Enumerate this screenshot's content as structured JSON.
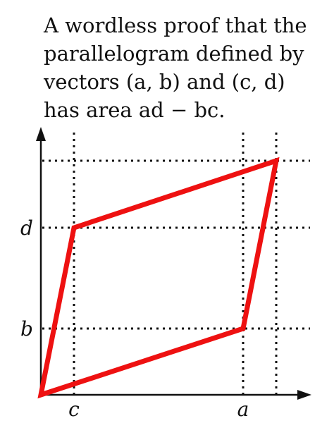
{
  "title": {
    "lines": [
      "A wordless proof that the",
      "parallelogram defined by",
      "vectors (a, b) and (c, d)",
      "has area ad − bc."
    ]
  },
  "axis_labels": {
    "d": "d",
    "b": "b",
    "c": "c",
    "a": "a"
  }
}
